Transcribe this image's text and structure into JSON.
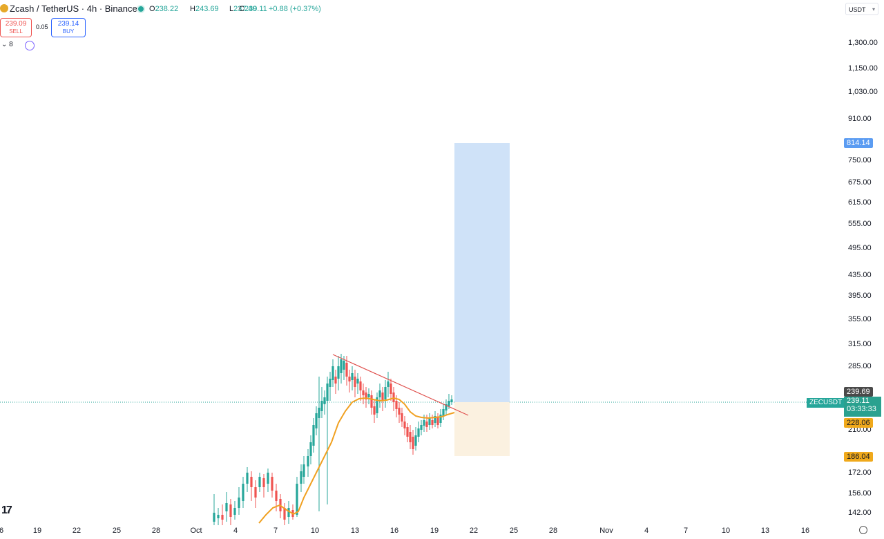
{
  "header": {
    "title": "Zcash / TetherUS · 4h · Binance",
    "ohlc": [
      {
        "k": "O",
        "v": "238.22"
      },
      {
        "k": "H",
        "v": "243.69"
      },
      {
        "k": "L",
        "v": "237.40"
      },
      {
        "k": "C",
        "v": "239.11"
      },
      {
        "k": "",
        "v": "+0.88 (+0.37%)"
      }
    ]
  },
  "trade": {
    "sell_price": "239.09",
    "sell_label": "SELL",
    "spread": "0.05",
    "buy_price": "239.14",
    "buy_label": "BUY"
  },
  "indicators": {
    "toggle_label": "8"
  },
  "currency": "USDT",
  "axis": {
    "price_labels": [
      "1,300.00",
      "1,150.00",
      "1,030.00",
      "910.00",
      "750.00",
      "675.00",
      "615.00",
      "555.00",
      "495.00",
      "435.00",
      "395.00",
      "355.00",
      "315.00",
      "285.00",
      "210.00",
      "172.00",
      "156.00",
      "142.00"
    ],
    "date_labels": [
      "19",
      "22",
      "25",
      "28",
      "Oct",
      "4",
      "7",
      "10",
      "13",
      "16",
      "19",
      "22",
      "25",
      "28",
      "Nov",
      "4",
      "7",
      "10",
      "13",
      "16"
    ]
  },
  "tags": {
    "target": "814.14",
    "high_marker": "239.69",
    "symbol": "ZECUSDT",
    "last_price": "239.11",
    "countdown": "03:33:33",
    "ma_value": "228.06",
    "stop": "186.04"
  },
  "logo_text": "17",
  "colors": {
    "up": "#26a69a",
    "down": "#ef5350",
    "ma": "#f0a020",
    "profit_zone": "#cfe2f8",
    "loss_zone": "#fbf1e0",
    "trendline": "#e0524f"
  },
  "chart_data": {
    "type": "candlestick",
    "symbol": "ZECUSDT",
    "timeframe": "4h",
    "last_close": 239.11,
    "annotations": {
      "trendline": "descending resistance line from ~Oct 11 high to ~Oct 20",
      "long_position": {
        "entry": 239.11,
        "target": 814.14,
        "stop": 186.04
      },
      "moving_average_last": 228.06
    }
  }
}
